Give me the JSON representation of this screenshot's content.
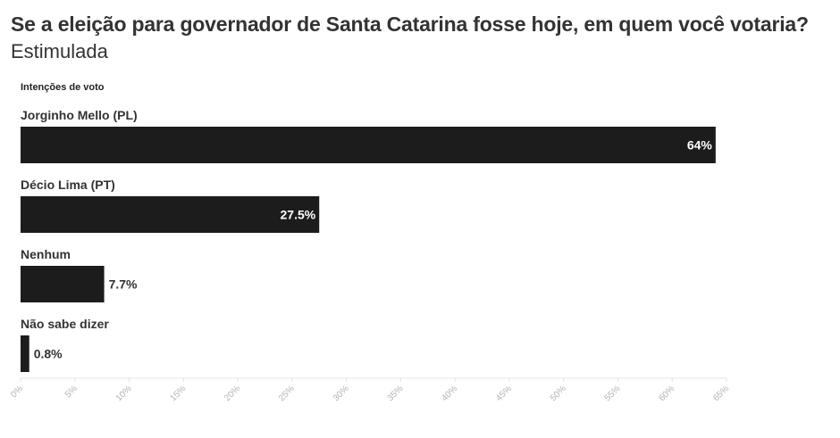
{
  "header": {
    "title": "Se a eleição para governador de Santa Catarina fosse hoje, em quem você votaria?",
    "subtitle": "Estimulada"
  },
  "chart_data": {
    "type": "bar",
    "orientation": "horizontal",
    "legend_title": "Intenções de voto",
    "categories": [
      "Jorginho Mello (PL)",
      "Décio Lima (PT)",
      "Nenhum",
      "Não sabe dizer"
    ],
    "values": [
      64,
      27.5,
      7.7,
      0.8
    ],
    "value_labels": [
      "64%",
      "27.5%",
      "7.7%",
      "0.8%"
    ],
    "xlim": [
      0,
      65
    ],
    "ticks": [
      0,
      5,
      10,
      15,
      20,
      25,
      30,
      35,
      40,
      45,
      50,
      55,
      60,
      65
    ],
    "tick_labels": [
      "0%",
      "5%",
      "10%",
      "15%",
      "20%",
      "25%",
      "30%",
      "35%",
      "40%",
      "45%",
      "50%",
      "55%",
      "60%",
      "65%"
    ],
    "bar_color": "#1c1c1c",
    "grid": false
  }
}
